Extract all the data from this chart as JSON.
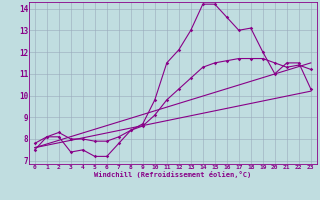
{
  "xlabel": "Windchill (Refroidissement éolien,°C)",
  "background_color": "#c0dde0",
  "line_color": "#880088",
  "grid_color": "#99aabb",
  "xlim": [
    -0.5,
    23.5
  ],
  "ylim": [
    6.85,
    14.3
  ],
  "xticks": [
    0,
    1,
    2,
    3,
    4,
    5,
    6,
    7,
    8,
    9,
    10,
    11,
    12,
    13,
    14,
    15,
    16,
    17,
    18,
    19,
    20,
    21,
    22,
    23
  ],
  "yticks": [
    7,
    8,
    9,
    10,
    11,
    12,
    13,
    14
  ],
  "curve1_x": [
    0,
    1,
    2,
    3,
    4,
    5,
    6,
    7,
    8,
    9,
    10,
    11,
    12,
    13,
    14,
    15,
    16,
    17,
    18,
    19,
    20,
    21,
    22,
    23
  ],
  "curve1_y": [
    7.5,
    8.1,
    8.1,
    7.4,
    7.5,
    7.2,
    7.2,
    7.8,
    8.4,
    8.7,
    9.8,
    11.5,
    12.1,
    13.0,
    14.2,
    14.2,
    13.6,
    13.0,
    13.1,
    12.0,
    11.0,
    11.5,
    11.5,
    10.3
  ],
  "curve2_x": [
    0,
    1,
    2,
    3,
    4,
    5,
    6,
    7,
    8,
    9,
    10,
    11,
    12,
    13,
    14,
    15,
    16,
    17,
    18,
    19,
    20,
    21,
    22,
    23
  ],
  "curve2_y": [
    7.8,
    8.1,
    8.3,
    8.0,
    8.0,
    7.9,
    7.9,
    8.1,
    8.4,
    8.6,
    9.1,
    9.8,
    10.3,
    10.8,
    11.3,
    11.5,
    11.6,
    11.7,
    11.7,
    11.7,
    11.5,
    11.3,
    11.4,
    11.2
  ],
  "line1_x": [
    0,
    23
  ],
  "line1_y": [
    7.6,
    11.5
  ],
  "line2_x": [
    0,
    23
  ],
  "line2_y": [
    7.6,
    10.2
  ]
}
